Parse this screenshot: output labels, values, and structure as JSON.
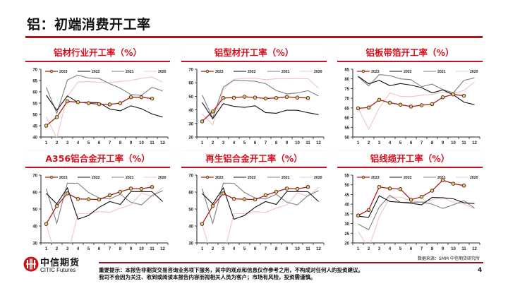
{
  "page": {
    "title": "铝：初端消费开工率",
    "source": "数据来源：SMM 中信期货研究所",
    "disclaimer_line1": "重要提示：本报告非期货交易咨询业务项下服务，其中的观点和信息仅作参考之用，不构成对任何人的投资建议。",
    "disclaimer_line2": "我司不会因为关注、收到或阅读本报告内容而视相关人员为客户；市场有风险，投资需谨慎。",
    "page_number": "4",
    "logo_cn": "中信期货",
    "logo_en": "CITIC Futures"
  },
  "colors": {
    "accent": "#c0121c",
    "s2023": "#b01a1a",
    "s2022": "#111111",
    "s2021": "#7f7f7f",
    "s2020": "#f2c4c4",
    "marker_fill": "#e8c878"
  },
  "chart_data": [
    {
      "type": "line",
      "title": "铝材行业开工率（%）",
      "x": [
        1,
        2,
        3,
        4,
        5,
        6,
        7,
        8,
        9,
        10,
        11,
        12
      ],
      "xticks": [
        "1",
        "2",
        "3",
        "4",
        "5",
        "6",
        "7",
        "8",
        "9",
        "10",
        "11",
        "12"
      ],
      "ylim": [
        40,
        70
      ],
      "yticks": [
        40,
        45,
        50,
        55,
        60,
        65,
        70
      ],
      "legend": "top",
      "series": [
        {
          "name": "2023",
          "values": [
            45,
            48.8,
            55.8,
            55.4,
            55,
            54.5,
            54.4,
            55,
            57.6,
            57.6,
            57,
            null
          ]
        },
        {
          "name": "2022",
          "values": [
            58.5,
            51.8,
            58.2,
            55.3,
            55.3,
            55.2,
            52.4,
            51.6,
            53.8,
            52.5,
            50.2,
            48.8
          ]
        },
        {
          "name": "2021",
          "values": [
            62,
            50.5,
            65.2,
            67.4,
            66.1,
            65.9,
            63.6,
            61.6,
            58.8,
            58.4,
            62,
            60.4
          ]
        },
        {
          "name": "2020",
          "values": [
            49,
            39.5,
            58,
            64.3,
            64.5,
            64.2,
            64.1,
            64.6,
            65,
            66,
            66.5,
            64.3
          ]
        }
      ]
    },
    {
      "type": "line",
      "title": "铝型材开工率（%）",
      "x": [
        1,
        2,
        3,
        4,
        5,
        6,
        7,
        8,
        9,
        10,
        11,
        12
      ],
      "xticks": [
        "1",
        "2",
        "3",
        "4",
        "5",
        "6",
        "7",
        "8",
        "9",
        "10",
        "11",
        "12"
      ],
      "ylim": [
        20,
        70
      ],
      "yticks": [
        20,
        30,
        40,
        50,
        60,
        70
      ],
      "legend": "top",
      "series": [
        {
          "name": "2023",
          "values": [
            31.5,
            38.8,
            48.8,
            49,
            49.7,
            49.1,
            48.4,
            48.8,
            49.6,
            49.1,
            48.8,
            null
          ]
        },
        {
          "name": "2022",
          "values": [
            45.5,
            33.5,
            44.6,
            42.6,
            41.8,
            43,
            38,
            37.5,
            39.8,
            39.7,
            37.9,
            36.5
          ]
        },
        {
          "name": "2021",
          "values": [
            51,
            34,
            56.8,
            61.8,
            61.5,
            61.1,
            59.3,
            54.3,
            51.8,
            52.5,
            54.2,
            50.2
          ]
        },
        {
          "name": "2020",
          "values": [
            37,
            29,
            55,
            62.6,
            63.2,
            63.3,
            62.3,
            62.9,
            62.9,
            63.1,
            63,
            56
          ]
        }
      ]
    },
    {
      "type": "line",
      "title": "铝板带箔开工率（%）",
      "x": [
        1,
        2,
        3,
        4,
        5,
        6,
        7,
        8,
        9,
        10,
        11,
        12
      ],
      "xticks": [
        "1",
        "2",
        "3",
        "4",
        "5",
        "6",
        "7",
        "8",
        "9",
        "10",
        "11",
        "12"
      ],
      "ylim": [
        50,
        85
      ],
      "yticks": [
        50,
        55,
        60,
        65,
        70,
        75,
        80,
        85
      ],
      "legend": "top",
      "series": [
        {
          "name": "2023",
          "values": [
            64.8,
            65.2,
            69.2,
            67.7,
            66.7,
            65.7,
            66.4,
            67,
            70.5,
            72,
            71.3,
            null
          ]
        },
        {
          "name": "2022",
          "values": [
            81.3,
            77.5,
            79.2,
            76.5,
            77.6,
            76.8,
            75.5,
            72.8,
            74.3,
            71.8,
            68,
            66.7
          ]
        },
        {
          "name": "2021",
          "values": [
            81.2,
            76.4,
            82.2,
            81.7,
            80,
            79.6,
            76,
            77.3,
            74.5,
            72.8,
            79.2,
            80.5
          ]
        },
        {
          "name": "2020",
          "values": [
            65,
            54,
            65,
            72.8,
            71,
            70.8,
            71.6,
            72,
            73.2,
            72.4,
            74,
            78.4
          ]
        }
      ]
    },
    {
      "type": "line",
      "title": "A356铝合金开工率（%）",
      "x": [
        1,
        2,
        3,
        4,
        5,
        6,
        7,
        8,
        9,
        10,
        11,
        12
      ],
      "xticks": [
        "1",
        "2",
        "3",
        "4",
        "5",
        "6",
        "7",
        "8",
        "9",
        "10",
        "11",
        "12"
      ],
      "ylim": [
        30,
        70
      ],
      "yticks": [
        30,
        40,
        50,
        60,
        70
      ],
      "legend": "top",
      "series": [
        {
          "name": "2023",
          "values": [
            41.2,
            51.8,
            59.2,
            56,
            55.8,
            55.6,
            58.1,
            60.2,
            62.1,
            61.9,
            63,
            null
          ]
        },
        {
          "name": "2022",
          "values": [
            59.2,
            53,
            62.5,
            44,
            46.2,
            51,
            54.4,
            52.7,
            60.3,
            60.3,
            60.2,
            54.4
          ]
        },
        {
          "name": "2021",
          "values": [
            62,
            41.5,
            65.3,
            65.2,
            59.8,
            56.5,
            55.9,
            58.7,
            54,
            52.4,
            58,
            60.8
          ]
        },
        {
          "name": "2020",
          "values": [
            41,
            20,
            22,
            47.3,
            47.3,
            48.5,
            48,
            50.5,
            52.5,
            59.5,
            57.5,
            62.8
          ]
        }
      ]
    },
    {
      "type": "line",
      "title": "再生铝合金开工率（%）",
      "x": [
        1,
        2,
        3,
        4,
        5,
        6,
        7,
        8,
        9,
        10,
        11,
        12
      ],
      "xticks": [
        "1",
        "2",
        "3",
        "4",
        "5",
        "6",
        "7",
        "8",
        "9",
        "10",
        "11",
        "12"
      ],
      "ylim": [
        30,
        70
      ],
      "yticks": [
        30,
        40,
        50,
        60,
        70
      ],
      "legend": "top",
      "series": [
        {
          "name": "2023",
          "values": [
            41.2,
            51.8,
            59.2,
            56,
            55.8,
            55.6,
            58.1,
            60.2,
            62.1,
            61.9,
            63,
            null
          ]
        },
        {
          "name": "2022",
          "values": [
            59.2,
            53,
            62.5,
            44,
            46.2,
            51,
            54.4,
            52.7,
            60.3,
            60.3,
            60.2,
            54.4
          ]
        },
        {
          "name": "2021",
          "values": [
            62,
            41.5,
            65.3,
            65.2,
            59.8,
            56.5,
            55.9,
            58.7,
            54,
            52.4,
            58,
            60.8
          ]
        },
        {
          "name": "2020",
          "values": [
            41,
            20,
            22,
            47.3,
            47.3,
            48.5,
            48,
            50.5,
            52.5,
            59.5,
            57.5,
            62.8
          ]
        }
      ]
    },
    {
      "type": "line",
      "title": "铝线缆开工率（%）",
      "x": [
        1,
        2,
        3,
        4,
        5,
        6,
        7,
        8,
        9,
        10,
        11,
        12
      ],
      "xticks": [
        "1",
        "2",
        "3",
        "4",
        "5",
        "6",
        "7",
        "8",
        "9",
        "10",
        "11",
        "12"
      ],
      "ylim": [
        20,
        55
      ],
      "yticks": [
        20,
        25,
        30,
        35,
        40,
        45,
        50,
        55
      ],
      "legend": "top",
      "series": [
        {
          "name": "2023",
          "values": [
            34.2,
            37,
            48.9,
            48.1,
            47.8,
            42.3,
            43.8,
            47,
            52.4,
            50.6,
            49.6,
            null
          ]
        },
        {
          "name": "2022",
          "values": [
            33.8,
            33.2,
            44.4,
            41.4,
            41,
            40.5,
            39.7,
            43.5,
            43.3,
            42.8,
            40.7,
            40.3
          ]
        },
        {
          "name": "2021",
          "values": [
            29.8,
            26.8,
            38.5,
            44.6,
            41,
            41,
            41.1,
            40,
            37.8,
            39.7,
            41.8,
            38
          ]
        },
        {
          "name": "2020",
          "values": [
            26,
            17,
            33.5,
            43.5,
            43.7,
            41.8,
            41,
            42.3,
            43.5,
            41,
            40,
            37.8
          ]
        }
      ]
    }
  ]
}
